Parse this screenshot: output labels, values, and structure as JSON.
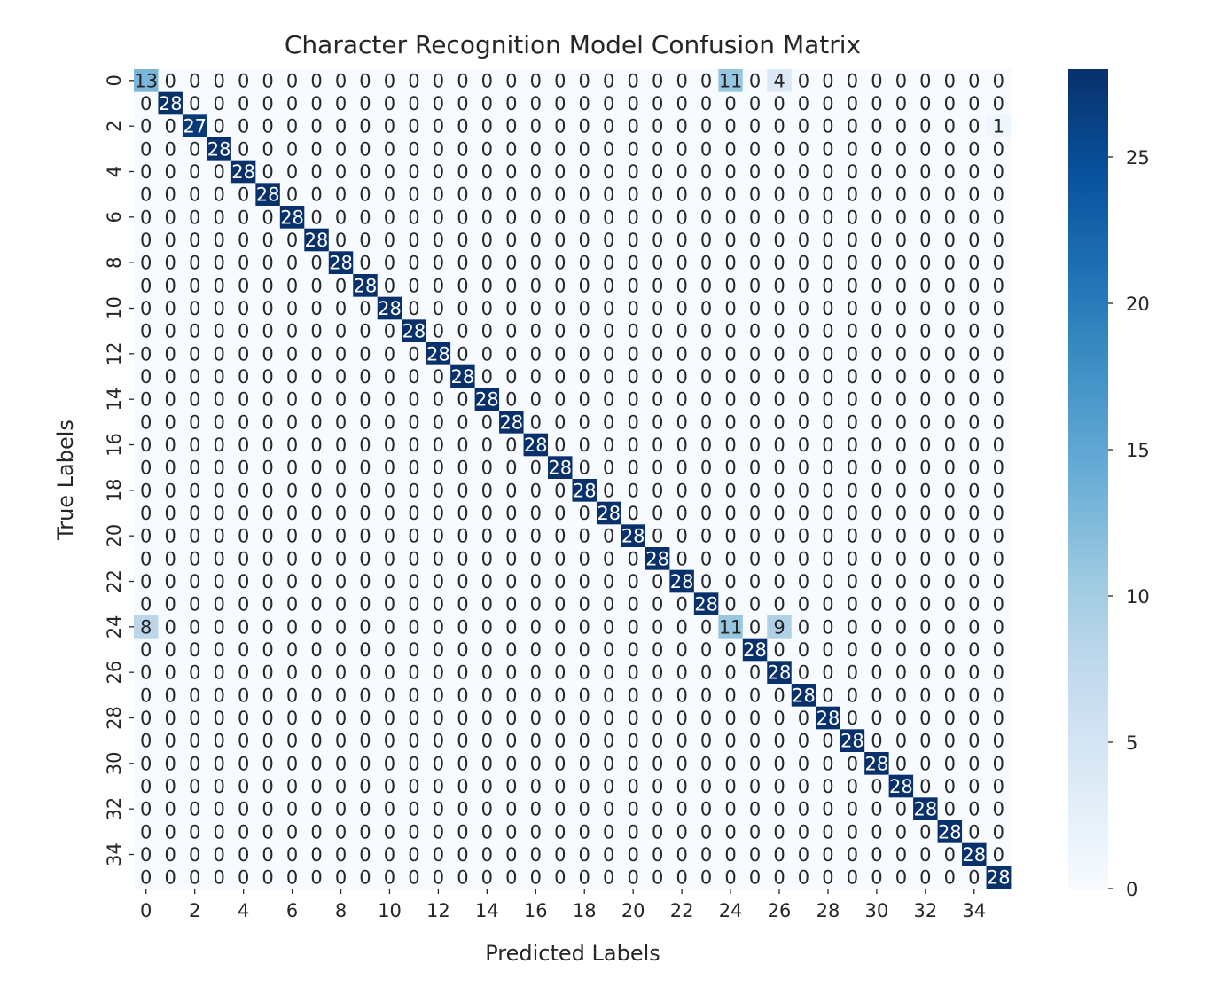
{
  "chart_data": {
    "type": "heatmap",
    "title": "Character Recognition Model Confusion Matrix",
    "xlabel": "Predicted Labels",
    "ylabel": "True Labels",
    "n_classes": 36,
    "x_tick_labels": [
      "0",
      "2",
      "4",
      "6",
      "8",
      "10",
      "12",
      "14",
      "16",
      "18",
      "20",
      "22",
      "24",
      "26",
      "28",
      "30",
      "32",
      "34"
    ],
    "y_tick_labels": [
      "0",
      "2",
      "4",
      "6",
      "8",
      "10",
      "12",
      "14",
      "16",
      "18",
      "20",
      "22",
      "24",
      "26",
      "28",
      "30",
      "32",
      "34"
    ],
    "colorbar_ticks": [
      0,
      5,
      10,
      15,
      20,
      25
    ],
    "vmin": 0,
    "vmax": 28,
    "colormap": "Blues",
    "colormap_stops": [
      "#f7fbff",
      "#deebf7",
      "#c6dbef",
      "#9ecae1",
      "#6baed6",
      "#4292c6",
      "#2171b5",
      "#08519c",
      "#08306b"
    ],
    "diagonal_default": 28,
    "matrix_entries": [
      {
        "row": 0,
        "col": 0,
        "value": 13
      },
      {
        "row": 0,
        "col": 24,
        "value": 11
      },
      {
        "row": 0,
        "col": 26,
        "value": 4
      },
      {
        "row": 0,
        "col": 25,
        "value": 0
      },
      {
        "row": 2,
        "col": 2,
        "value": 27
      },
      {
        "row": 2,
        "col": 35,
        "value": 1
      },
      {
        "row": 24,
        "col": 0,
        "value": 8
      },
      {
        "row": 24,
        "col": 24,
        "value": 11
      },
      {
        "row": 24,
        "col": 26,
        "value": 9
      },
      {
        "row": 24,
        "col": 25,
        "value": 0
      },
      {
        "row": 26,
        "col": 26,
        "value": 28
      }
    ]
  }
}
